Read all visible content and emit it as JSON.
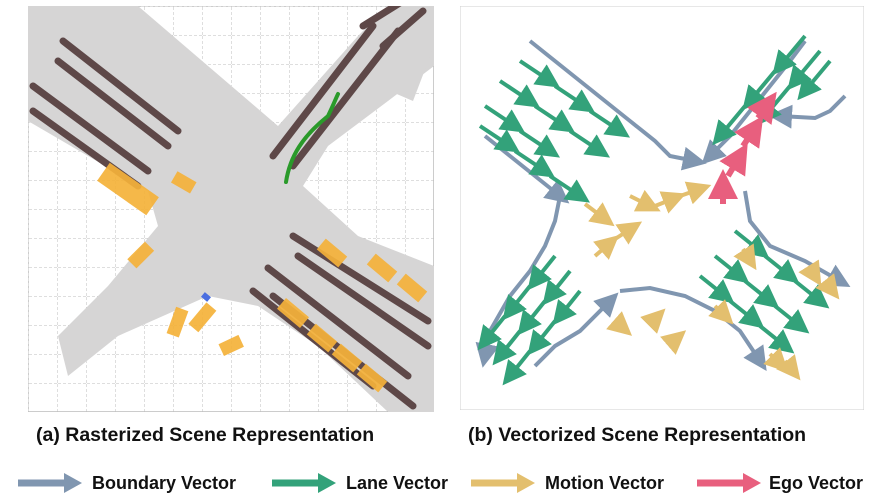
{
  "captions": {
    "a": "(a) Rasterized Scene Representation",
    "b": "(b) Vectorized Scene Representation"
  },
  "legend": [
    {
      "key": "boundary",
      "label": "Boundary Vector",
      "color": "#8096b0"
    },
    {
      "key": "lane",
      "label": "Lane Vector",
      "color": "#33a27a"
    },
    {
      "key": "motion",
      "label": "Motion Vector",
      "color": "#e3bf6e"
    },
    {
      "key": "ego",
      "label": "Ego Vector",
      "color": "#e85f7e"
    }
  ],
  "colors": {
    "road": "#d7d6d6",
    "lane_marking": "#5e4848",
    "agent_box": "#f5b23a",
    "ego_path": "#2a9a2a",
    "ego_box": "#4a6ee0",
    "grid": "#b8b8b8"
  }
}
